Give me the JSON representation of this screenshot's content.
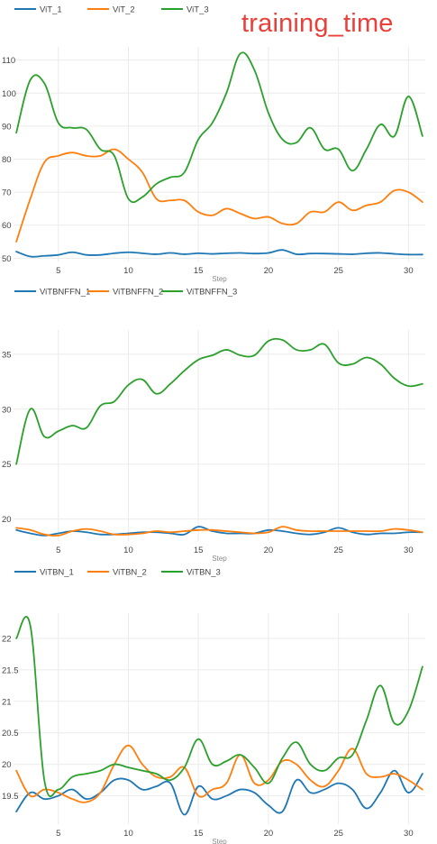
{
  "header": {
    "title": "training_time"
  },
  "colors": {
    "series1": "#1f77b4",
    "series2": "#ff7f0e",
    "series3": "#2ca02c",
    "title": "#e8403a",
    "grid": "#ebebeb",
    "tick": "#444444"
  },
  "chart_data": [
    {
      "type": "line",
      "title": "training_time",
      "xlabel": "Step",
      "ylabel": "",
      "xlim": [
        1.8,
        31.2
      ],
      "ylim": [
        49,
        114
      ],
      "xticks": [
        5,
        10,
        15,
        20,
        25,
        30
      ],
      "yticks": [
        50,
        60,
        70,
        80,
        90,
        100,
        110
      ],
      "legend_position": "top-left",
      "series": [
        {
          "name": "ViT_1",
          "color": "#1f77b4",
          "x": [
            2,
            3,
            4,
            5,
            6,
            7,
            8,
            9,
            10,
            11,
            12,
            13,
            14,
            15,
            16,
            17,
            18,
            19,
            20,
            21,
            22,
            23,
            24,
            25,
            26,
            27,
            28,
            29,
            30,
            31
          ],
          "values": [
            52,
            50.5,
            50.7,
            51,
            51.8,
            51,
            51,
            51.5,
            51.8,
            51.5,
            51.2,
            51.6,
            51.2,
            51.5,
            51.3,
            51.5,
            51.6,
            51.4,
            51.6,
            52.5,
            51.2,
            51.4,
            51.4,
            51.3,
            51.2,
            51.5,
            51.6,
            51.3,
            51.1,
            51.1
          ]
        },
        {
          "name": "ViT_2",
          "color": "#ff7f0e",
          "x": [
            2,
            3,
            4,
            5,
            6,
            7,
            8,
            9,
            10,
            11,
            12,
            13,
            14,
            15,
            16,
            17,
            18,
            19,
            20,
            21,
            22,
            23,
            24,
            25,
            26,
            27,
            28,
            29,
            30,
            31
          ],
          "values": [
            55,
            68,
            79,
            81,
            82,
            81,
            81,
            83,
            80,
            76,
            68,
            67.5,
            67.5,
            64,
            63,
            65,
            63.5,
            62,
            62.5,
            60.5,
            60.5,
            64,
            64,
            67,
            64.5,
            66,
            67,
            70.5,
            70,
            67
          ]
        },
        {
          "name": "ViT_3",
          "color": "#2ca02c",
          "x": [
            2,
            3,
            4,
            5,
            6,
            7,
            8,
            9,
            10,
            11,
            12,
            13,
            14,
            15,
            16,
            17,
            18,
            19,
            20,
            21,
            22,
            23,
            24,
            25,
            26,
            27,
            28,
            29,
            30,
            31
          ],
          "values": [
            88,
            104,
            103,
            91,
            89.5,
            89,
            83,
            81,
            68,
            68.5,
            72.5,
            74.5,
            76,
            86,
            91,
            100,
            112,
            107,
            94,
            86,
            85,
            89.5,
            83,
            83,
            76.5,
            83,
            90.5,
            87,
            99,
            87
          ]
        }
      ]
    },
    {
      "type": "line",
      "title": "",
      "xlabel": "Step",
      "ylabel": "",
      "xlim": [
        1.8,
        31.2
      ],
      "ylim": [
        18,
        37.2
      ],
      "xticks": [
        5,
        10,
        15,
        20,
        25,
        30
      ],
      "yticks": [
        20,
        25,
        30,
        35
      ],
      "legend_position": "top-left",
      "series": [
        {
          "name": "ViTBNFFN_1",
          "color": "#1f77b4",
          "x": [
            2,
            3,
            4,
            5,
            6,
            7,
            8,
            9,
            10,
            11,
            12,
            13,
            14,
            15,
            16,
            17,
            18,
            19,
            20,
            21,
            22,
            23,
            24,
            25,
            26,
            27,
            28,
            29,
            30,
            31
          ],
          "values": [
            19,
            18.7,
            18.5,
            18.7,
            18.9,
            18.8,
            18.6,
            18.6,
            18.7,
            18.8,
            18.8,
            18.7,
            18.6,
            19.3,
            18.9,
            18.7,
            18.7,
            18.7,
            19,
            18.9,
            18.7,
            18.6,
            18.8,
            19.2,
            18.8,
            18.6,
            18.7,
            18.7,
            18.8,
            18.8
          ]
        },
        {
          "name": "ViTBNFFN_2",
          "color": "#ff7f0e",
          "x": [
            2,
            3,
            4,
            5,
            6,
            7,
            8,
            9,
            10,
            11,
            12,
            13,
            14,
            15,
            16,
            17,
            18,
            19,
            20,
            21,
            22,
            23,
            24,
            25,
            26,
            27,
            28,
            29,
            30,
            31
          ],
          "values": [
            19.2,
            19,
            18.6,
            18.5,
            18.9,
            19.1,
            18.9,
            18.6,
            18.6,
            18.7,
            18.9,
            18.8,
            18.9,
            19,
            19,
            18.9,
            18.8,
            18.7,
            18.8,
            19.3,
            19,
            18.9,
            18.9,
            18.9,
            18.9,
            18.9,
            18.9,
            19.1,
            19,
            18.8
          ]
        },
        {
          "name": "ViTBNFFN_3",
          "color": "#2ca02c",
          "x": [
            2,
            3,
            4,
            5,
            6,
            7,
            8,
            9,
            10,
            11,
            12,
            13,
            14,
            15,
            16,
            17,
            18,
            19,
            20,
            21,
            22,
            23,
            24,
            25,
            26,
            27,
            28,
            29,
            30,
            31
          ],
          "values": [
            25,
            30,
            27.5,
            28,
            28.5,
            28.3,
            30.3,
            30.7,
            32.2,
            32.7,
            31.4,
            32.3,
            33.5,
            34.5,
            34.9,
            35.4,
            34.9,
            34.9,
            36.2,
            36.3,
            35.4,
            35.4,
            35.9,
            34.2,
            34.1,
            34.7,
            34.1,
            32.8,
            32.1,
            32.3
          ]
        }
      ]
    },
    {
      "type": "line",
      "title": "",
      "xlabel": "Step",
      "ylabel": "",
      "xlim": [
        1.8,
        31.2
      ],
      "ylim": [
        19.05,
        22.4
      ],
      "xticks": [
        5,
        10,
        15,
        20,
        25,
        30
      ],
      "yticks": [
        19.5,
        20,
        20.5,
        21,
        21.5,
        22
      ],
      "ytick_labels": [
        "19.5",
        "20",
        "20.5",
        "21",
        "21.5",
        "22"
      ],
      "legend_position": "top-left",
      "series": [
        {
          "name": "ViTBN_1",
          "color": "#1f77b4",
          "x": [
            2,
            3,
            4,
            5,
            6,
            7,
            8,
            9,
            10,
            11,
            12,
            13,
            14,
            15,
            16,
            17,
            18,
            19,
            20,
            21,
            22,
            23,
            24,
            25,
            26,
            27,
            28,
            29,
            30,
            31
          ],
          "values": [
            19.25,
            19.55,
            19.45,
            19.5,
            19.6,
            19.45,
            19.55,
            19.75,
            19.75,
            19.6,
            19.65,
            19.7,
            19.2,
            19.65,
            19.45,
            19.5,
            19.6,
            19.55,
            19.35,
            19.25,
            19.75,
            19.55,
            19.6,
            19.7,
            19.6,
            19.3,
            19.55,
            19.9,
            19.55,
            19.85
          ]
        },
        {
          "name": "ViTBN_2",
          "color": "#ff7f0e",
          "x": [
            2,
            3,
            4,
            5,
            6,
            7,
            8,
            9,
            10,
            11,
            12,
            13,
            14,
            15,
            16,
            17,
            18,
            19,
            20,
            21,
            22,
            23,
            24,
            25,
            26,
            27,
            28,
            29,
            30,
            31
          ],
          "values": [
            19.9,
            19.5,
            19.6,
            19.55,
            19.45,
            19.4,
            19.55,
            20,
            20.3,
            20,
            19.8,
            19.8,
            19.95,
            19.5,
            19.6,
            19.7,
            20.15,
            19.7,
            19.75,
            20.05,
            20,
            19.75,
            19.65,
            19.9,
            20.25,
            19.85,
            19.8,
            19.85,
            19.75,
            19.6
          ]
        },
        {
          "name": "ViTBN_3",
          "color": "#2ca02c",
          "x": [
            2,
            3,
            4,
            5,
            6,
            7,
            8,
            9,
            10,
            11,
            12,
            13,
            14,
            15,
            16,
            17,
            18,
            19,
            20,
            21,
            22,
            23,
            24,
            25,
            26,
            27,
            28,
            29,
            30,
            31
          ],
          "values": [
            22,
            22.2,
            19.75,
            19.6,
            19.8,
            19.85,
            19.9,
            20,
            19.95,
            19.9,
            19.85,
            19.75,
            19.95,
            20.4,
            20,
            20.05,
            20.15,
            19.95,
            19.7,
            20.1,
            20.35,
            20,
            19.9,
            20.1,
            20.15,
            20.7,
            21.25,
            20.65,
            20.85,
            21.55
          ]
        }
      ]
    }
  ]
}
